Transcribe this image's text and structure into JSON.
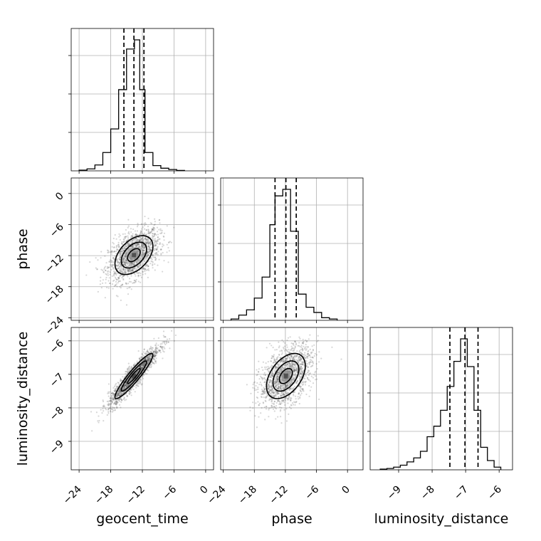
{
  "chart_data": {
    "type": "corner",
    "parameters": [
      "geocent_time",
      "phase",
      "luminosity_distance"
    ],
    "ranges": {
      "geocent_time": [
        -25.5,
        1.5
      ],
      "phase": [
        -24.5,
        3.0
      ],
      "luminosity_distance": [
        -9.85,
        -5.6
      ]
    },
    "ticks": {
      "geocent_time": [
        -24,
        -18,
        -12,
        -6,
        0
      ],
      "phase": [
        -24,
        -18,
        -12,
        -6,
        0
      ],
      "luminosity_distance": [
        -9,
        -8,
        -7,
        -6
      ]
    },
    "tick_labels": {
      "geocent_time": [
        "−24",
        "−18",
        "−12",
        "−6",
        "0"
      ],
      "phase": [
        "−24",
        "−18",
        "−12",
        "−6",
        "0"
      ],
      "luminosity_distance": [
        "−9",
        "−8",
        "−7",
        "−6"
      ]
    },
    "quantiles": {
      "geocent_time": [
        -15.5,
        -13.6,
        -11.7
      ],
      "phase": [
        -14.0,
        -11.9,
        -9.9
      ],
      "luminosity_distance": [
        -7.47,
        -7.02,
        -6.63
      ]
    },
    "histograms": {
      "geocent_time": {
        "edges": [
          -24.0,
          -22.5,
          -21.0,
          -19.5,
          -18.0,
          -16.5,
          -15.0,
          -13.5,
          -12.5,
          -11.5,
          -10.0,
          -8.5,
          -7.0,
          -5.5,
          -4.0
        ],
        "counts": [
          0.005,
          0.015,
          0.045,
          0.14,
          0.32,
          0.62,
          0.93,
          1.0,
          0.62,
          0.14,
          0.04,
          0.02,
          0.01,
          0.003
        ]
      },
      "phase": {
        "edges": [
          -22.5,
          -21.0,
          -19.5,
          -18.0,
          -16.5,
          -15.0,
          -14.0,
          -12.5,
          -11.0,
          -9.5,
          -8.0,
          -6.5,
          -5.0,
          -3.5,
          -2.0
        ],
        "counts": [
          0.01,
          0.04,
          0.08,
          0.17,
          0.33,
          0.73,
          0.95,
          1.0,
          0.68,
          0.2,
          0.1,
          0.06,
          0.02,
          0.01
        ]
      },
      "luminosity_distance": {
        "edges": [
          -9.55,
          -9.35,
          -9.15,
          -8.95,
          -8.75,
          -8.55,
          -8.35,
          -8.15,
          -7.95,
          -7.75,
          -7.55,
          -7.35,
          -7.15,
          -6.95,
          -6.75,
          -6.55,
          -6.35,
          -6.15,
          -5.95
        ],
        "counts": [
          0.005,
          0.01,
          0.02,
          0.035,
          0.06,
          0.09,
          0.14,
          0.25,
          0.33,
          0.45,
          0.63,
          0.82,
          0.99,
          0.78,
          0.45,
          0.17,
          0.07,
          0.02
        ]
      }
    },
    "pairs": [
      {
        "x": "geocent_time",
        "y": "phase",
        "center": [
          -13.6,
          -11.9
        ],
        "sigma": [
          2.4,
          2.5
        ],
        "rho": 0.45,
        "contour_levels": [
          0.5,
          1.0,
          1.5
        ]
      },
      {
        "x": "geocent_time",
        "y": "luminosity_distance",
        "center": [
          -13.6,
          -7.05
        ],
        "sigma": [
          2.4,
          0.45
        ],
        "rho": 0.93,
        "contour_levels": [
          0.5,
          1.0,
          1.5
        ]
      },
      {
        "x": "phase",
        "y": "luminosity_distance",
        "center": [
          -11.9,
          -7.05
        ],
        "sigma": [
          2.5,
          0.45
        ],
        "rho": 0.45,
        "contour_levels": [
          0.5,
          1.0,
          1.5
        ]
      }
    ]
  }
}
